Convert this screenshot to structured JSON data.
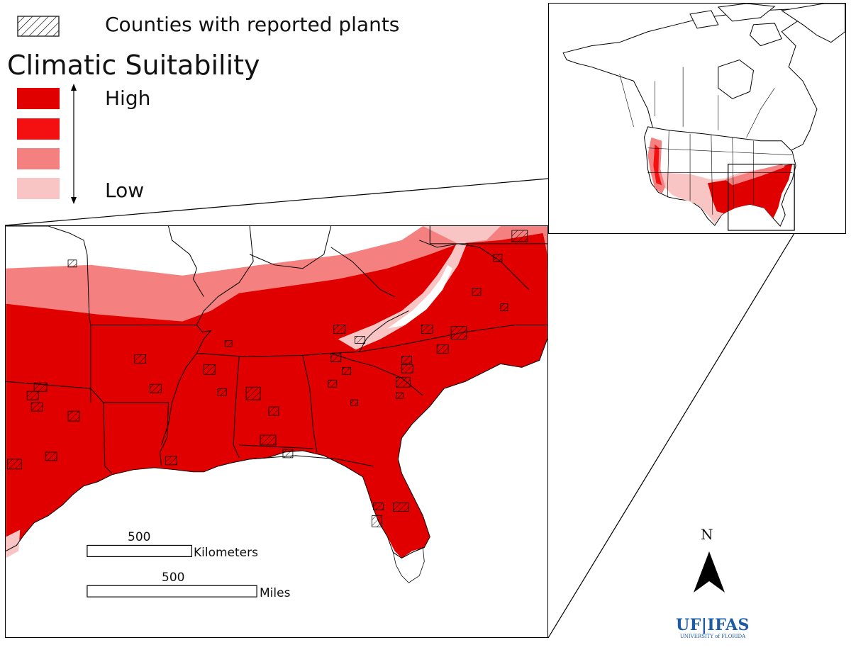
{
  "legend": {
    "hatch_label": "Counties with reported plants",
    "title": "Climatic Suitability",
    "high_label": "High",
    "low_label": "Low",
    "classes": [
      {
        "level": "high",
        "color": "#e00000"
      },
      {
        "level": "mid-high",
        "color": "#f41010"
      },
      {
        "level": "mid-low",
        "color": "#f48080"
      },
      {
        "level": "low",
        "color": "#f9c4c4"
      }
    ]
  },
  "scale": {
    "km_value": "500",
    "km_unit": "Kilometers",
    "mi_value": "500",
    "mi_unit": "Miles"
  },
  "north_label": "N",
  "logo": {
    "main": "UF|IFAS",
    "sub": "UNIVERSITY of FLORIDA",
    "color": "#1b5aa6"
  },
  "colors": {
    "high": "#e00000",
    "low": "#f9c4c4",
    "mid": "#f48080",
    "mid_high": "#f41010",
    "ocean": "#ffffff"
  }
}
